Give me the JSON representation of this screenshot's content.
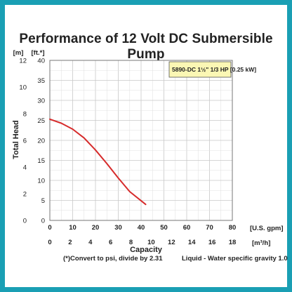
{
  "chart_data": {
    "type": "line",
    "title": "Performance of 12 Volt DC Submersible Pump",
    "ylabel": "Total Head",
    "xlabel": "Capacity",
    "y_unit_m": "[m]",
    "y_unit_ft": "[ft.*]",
    "x_unit_gpm": "[U.S. gpm]",
    "x_unit_m3h": "[m³/h]",
    "xlim_gpm": [
      0,
      80
    ],
    "ylim_ft": [
      0,
      40
    ],
    "ylim_m": [
      0,
      12
    ],
    "xlim_m3h": [
      0,
      18
    ],
    "x_ticks_gpm": [
      "0",
      "10",
      "20",
      "30",
      "40",
      "50",
      "60",
      "70",
      "80"
    ],
    "x_ticks_m3h": [
      "0",
      "2",
      "4",
      "6",
      "8",
      "10",
      "12",
      "14",
      "16",
      "18"
    ],
    "y_ticks_ft": [
      "0",
      "5",
      "10",
      "15",
      "20",
      "25",
      "30",
      "35",
      "40"
    ],
    "y_ticks_m": [
      "0",
      "2",
      "4",
      "6",
      "8",
      "10",
      "12"
    ],
    "grid": true,
    "legend_position": "top-right",
    "series": [
      {
        "name": "5890-DC 1½\" 1/3 HP [0.25 kW]",
        "color": "#d62b2b",
        "x": [
          0,
          5,
          10,
          15,
          20,
          25,
          30,
          35,
          42
        ],
        "y": [
          25.3,
          24.3,
          22.8,
          20.6,
          17.6,
          14.2,
          10.6,
          7.2,
          4.0
        ]
      }
    ],
    "footnote_left": "(*)Convert to psi, divide by 2.31",
    "footnote_right": "Liquid - Water specific gravity 1.0"
  }
}
